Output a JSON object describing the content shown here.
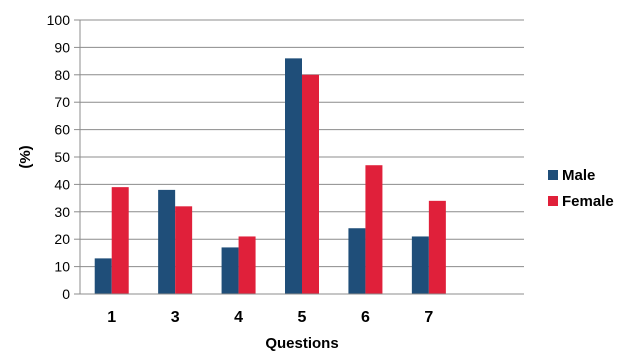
{
  "chart_data": {
    "type": "bar",
    "title": "",
    "xlabel": "Questions",
    "ylabel": "(%)",
    "categories": [
      "1",
      "3",
      "4",
      "5",
      "6",
      "7"
    ],
    "ylim": [
      0,
      100
    ],
    "yticks": [
      0,
      10,
      20,
      30,
      40,
      50,
      60,
      70,
      80,
      90,
      100
    ],
    "grid": "horizontal",
    "legend_position": "right",
    "series": [
      {
        "name": "Male",
        "color": "#1f4e79",
        "values": [
          13,
          38,
          17,
          86,
          24,
          21
        ]
      },
      {
        "name": "Female",
        "color": "#e0203a",
        "values": [
          39,
          32,
          21,
          80,
          47,
          34
        ]
      }
    ]
  }
}
